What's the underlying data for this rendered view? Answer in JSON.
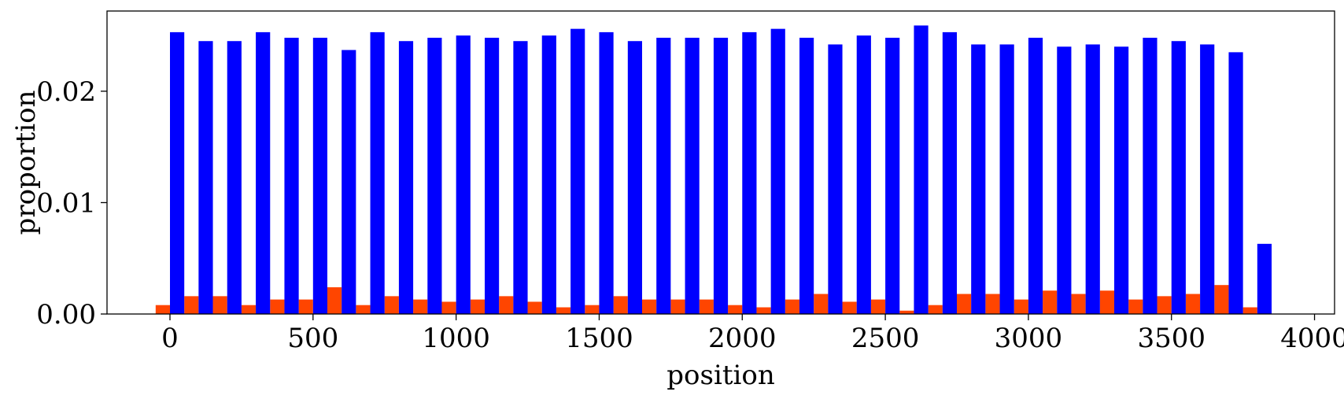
{
  "chart_data": {
    "type": "bar",
    "title": "",
    "xlabel": "position",
    "ylabel": "proportion",
    "xlim": [
      -220,
      4070
    ],
    "ylim": [
      0,
      0.0272
    ],
    "bin_width": 100,
    "x_ticks": [
      0,
      500,
      1000,
      1500,
      2000,
      2500,
      3000,
      3500,
      4000
    ],
    "x_tick_labels": [
      "0",
      "500",
      "1000",
      "1500",
      "2000",
      "2500",
      "3000",
      "3500",
      "4000"
    ],
    "y_ticks": [
      0,
      0.01,
      0.02
    ],
    "y_tick_labels": [
      "0.00",
      "0.01",
      "0.02"
    ],
    "x": [
      0,
      100,
      200,
      300,
      400,
      500,
      600,
      700,
      800,
      900,
      1000,
      1100,
      1200,
      1300,
      1400,
      1500,
      1600,
      1700,
      1800,
      1900,
      2000,
      2100,
      2200,
      2300,
      2400,
      2500,
      2600,
      2700,
      2800,
      2900,
      3000,
      3100,
      3200,
      3300,
      3400,
      3500,
      3600,
      3700,
      3800
    ],
    "series": [
      {
        "color": "#ff4500",
        "values": [
          0.0008,
          0.0016,
          0.0016,
          0.0008,
          0.0013,
          0.0013,
          0.0024,
          0.0008,
          0.0016,
          0.0013,
          0.0011,
          0.0013,
          0.0016,
          0.0011,
          0.0006,
          0.0008,
          0.0016,
          0.0013,
          0.0013,
          0.0013,
          0.0008,
          0.0006,
          0.0013,
          0.0018,
          0.0011,
          0.0013,
          0.0003,
          0.0008,
          0.0018,
          0.0018,
          0.0013,
          0.0021,
          0.0018,
          0.0021,
          0.0013,
          0.0016,
          0.0018,
          0.0026,
          0.0006
        ]
      },
      {
        "color": "#0000ff",
        "values": [
          0.0253,
          0.0245,
          0.0245,
          0.0253,
          0.0248,
          0.0248,
          0.0237,
          0.0253,
          0.0245,
          0.0248,
          0.025,
          0.0248,
          0.0245,
          0.025,
          0.0256,
          0.0253,
          0.0245,
          0.0248,
          0.0248,
          0.0248,
          0.0253,
          0.0256,
          0.0248,
          0.0242,
          0.025,
          0.0248,
          0.0259,
          0.0253,
          0.0242,
          0.0242,
          0.0248,
          0.024,
          0.0242,
          0.024,
          0.0248,
          0.0245,
          0.0242,
          0.0235,
          0.0063
        ]
      }
    ]
  }
}
